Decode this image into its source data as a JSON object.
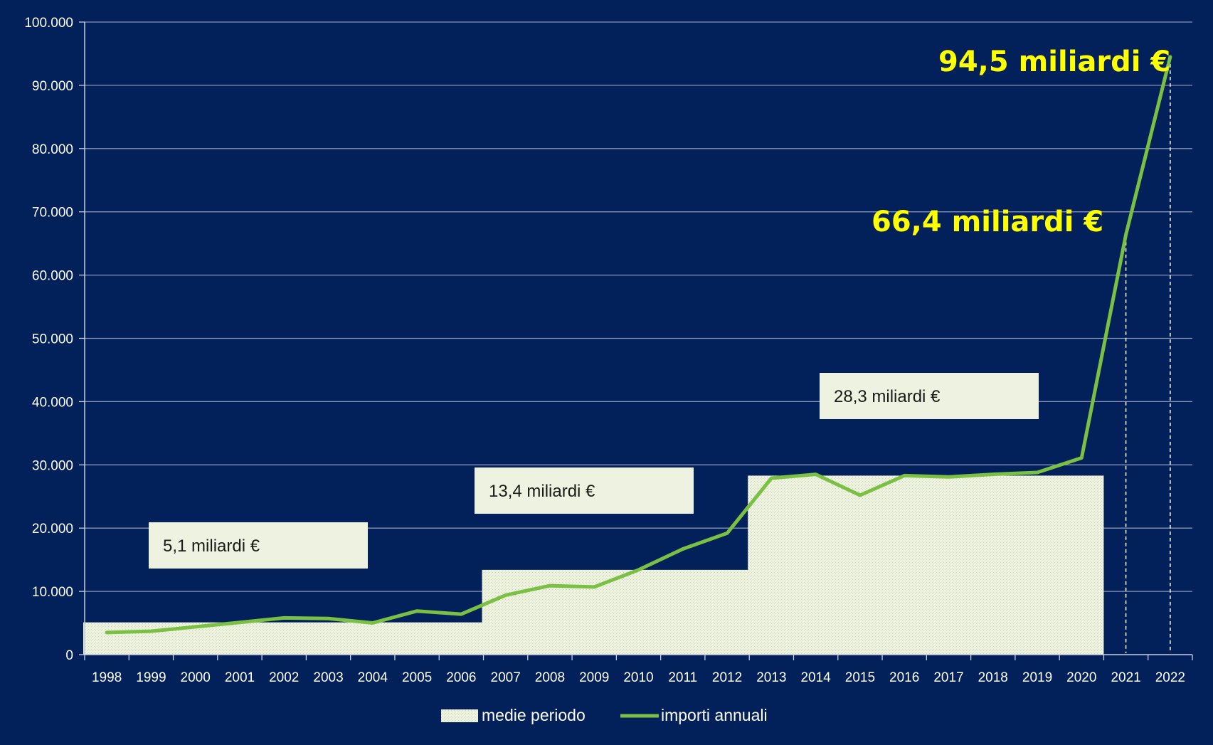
{
  "chart_data": {
    "type": "line",
    "title": "",
    "xlabel": "",
    "ylabel": "",
    "categories": [
      "1998",
      "1999",
      "2000",
      "2001",
      "2002",
      "2003",
      "2004",
      "2005",
      "2006",
      "2007",
      "2008",
      "2009",
      "2010",
      "2011",
      "2012",
      "2013",
      "2014",
      "2015",
      "2016",
      "2017",
      "2018",
      "2019",
      "2020",
      "2021",
      "2022"
    ],
    "ylim": [
      0,
      100000
    ],
    "yticks": [
      "0",
      "10.000",
      "20.000",
      "30.000",
      "40.000",
      "50.000",
      "60.000",
      "70.000",
      "80.000",
      "90.000",
      "100.000"
    ],
    "grid": true,
    "legend_position": "bottom",
    "series": [
      {
        "name": "importi annuali",
        "kind": "line",
        "color": "#7ac143",
        "values": [
          3500,
          3700,
          4400,
          5100,
          5800,
          5700,
          5000,
          6900,
          6400,
          9400,
          10900,
          10700,
          13400,
          16700,
          19200,
          27900,
          28500,
          25200,
          28300,
          28100,
          28500,
          28800,
          31100,
          66400,
          94500
        ]
      },
      {
        "name": "medie periodo",
        "kind": "step-area",
        "color": "#eef2e0",
        "segments": [
          {
            "from": "1998",
            "to": "2006",
            "value": 5100
          },
          {
            "from": "2007",
            "to": "2012",
            "value": 13400
          },
          {
            "from": "2013",
            "to": "2020",
            "value": 28300
          }
        ]
      }
    ],
    "annotations": {
      "period_labels": [
        "5,1 miliardi €",
        "13,4 miliardi €",
        "28,3 miliardi €"
      ],
      "highlight_labels": [
        {
          "year": "2021",
          "text": "66,4 miliardi €"
        },
        {
          "year": "2022",
          "text": "94,5 miliardi €"
        }
      ]
    }
  }
}
